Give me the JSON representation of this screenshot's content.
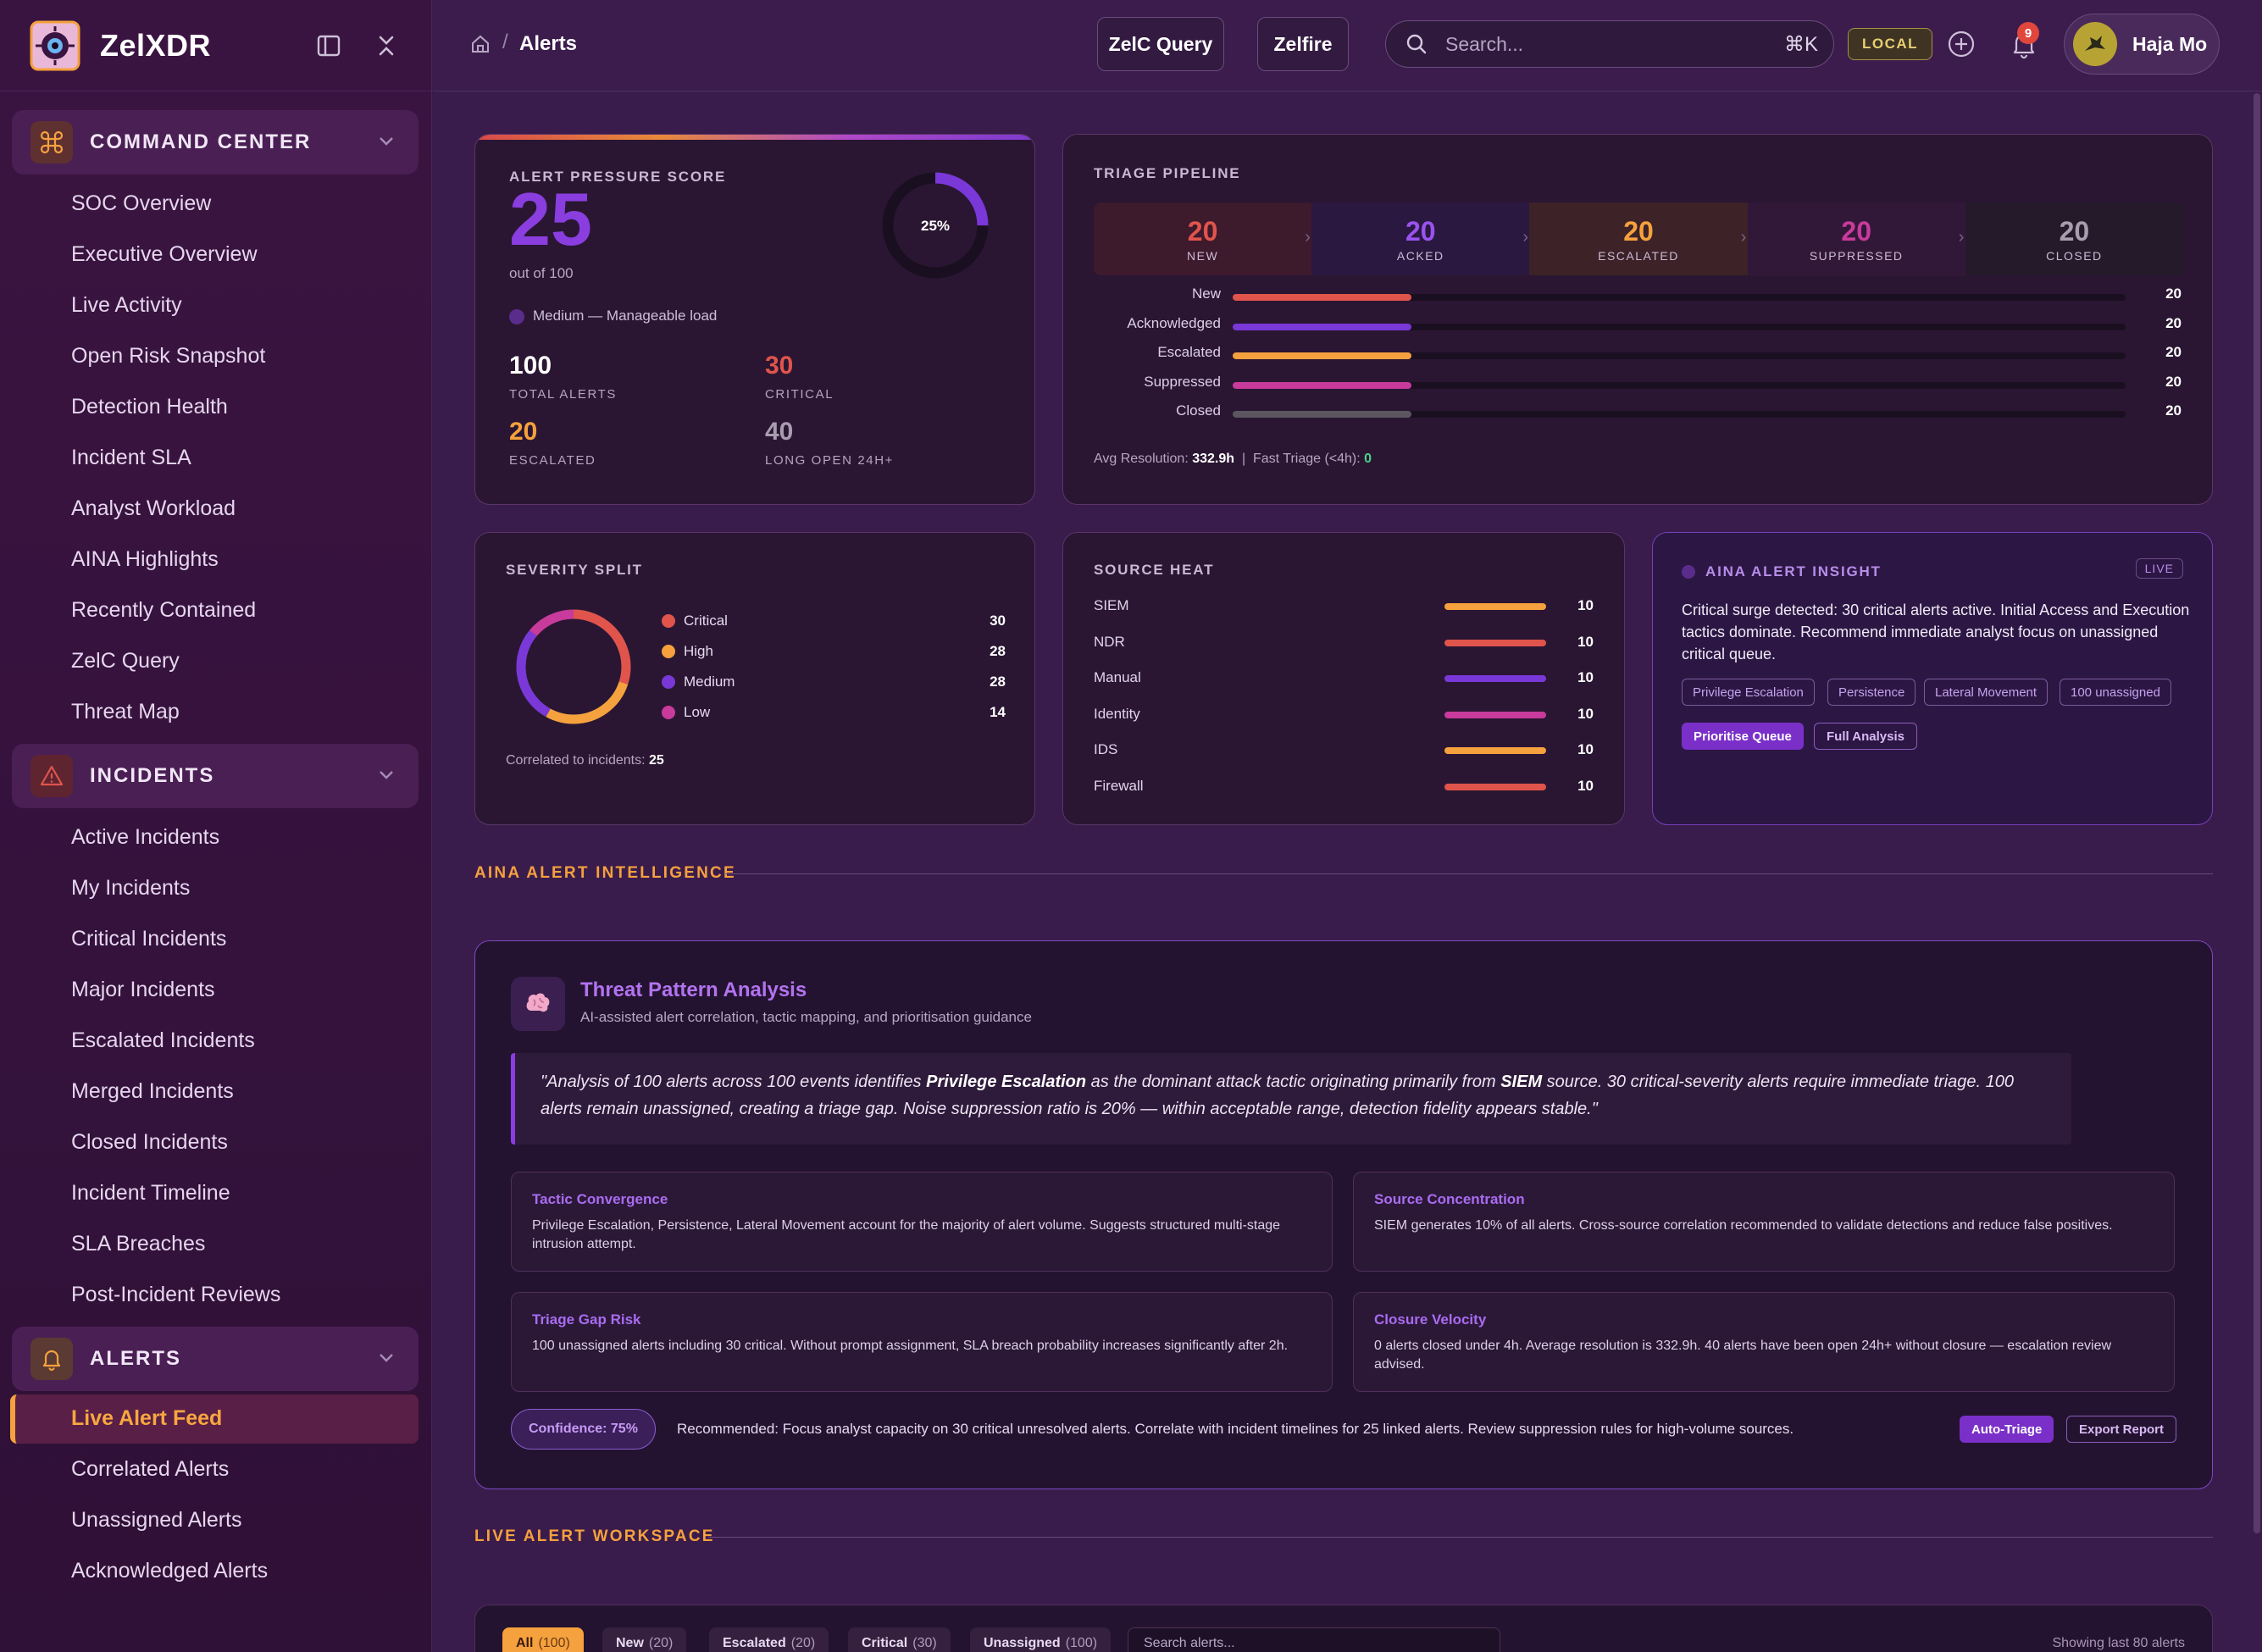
{
  "app": {
    "name": "ZelXDR"
  },
  "sidebar": {
    "sections": [
      {
        "title": "COMMAND CENTER",
        "items": [
          "SOC Overview",
          "Executive Overview",
          "Live Activity",
          "Open Risk Snapshot",
          "Detection Health",
          "Incident SLA",
          "Analyst Workload",
          "AINA Highlights",
          "Recently Contained",
          "ZelC Query",
          "Threat Map"
        ]
      },
      {
        "title": "INCIDENTS",
        "items": [
          "Active Incidents",
          "My Incidents",
          "Critical Incidents",
          "Major Incidents",
          "Escalated Incidents",
          "Merged Incidents",
          "Closed Incidents",
          "Incident Timeline",
          "SLA Breaches",
          "Post-Incident Reviews"
        ]
      },
      {
        "title": "ALERTS",
        "items": [
          "Live Alert Feed",
          "Correlated Alerts",
          "Unassigned Alerts",
          "Acknowledged Alerts"
        ],
        "active": "Live Alert Feed"
      }
    ]
  },
  "topbar": {
    "breadcrumb": "Alerts",
    "buttons": [
      "ZelC Query",
      "Zelfire"
    ],
    "search_placeholder": "Search...",
    "search_shortcut": "⌘K",
    "env_badge": "LOCAL",
    "notification_count": "9",
    "user": "Haja Mo"
  },
  "pressure": {
    "label": "ALERT PRESSURE SCORE",
    "score": "25",
    "out_of": "out of 100",
    "gauge_percent": 25,
    "gauge_text": "25%",
    "level": "Medium — Manageable load",
    "stats": [
      {
        "value": "100",
        "label": "TOTAL ALERTS",
        "color": "#ffffff"
      },
      {
        "value": "30",
        "label": "CRITICAL",
        "color": "#e0544c"
      },
      {
        "value": "20",
        "label": "ESCALATED",
        "color": "#f5a13d"
      },
      {
        "value": "40",
        "label": "LONG OPEN 24H+",
        "color": "#a99cb0"
      }
    ]
  },
  "triage": {
    "label": "TRIAGE PIPELINE",
    "stages": [
      {
        "value": "20",
        "label": "NEW",
        "color": "#e0544c",
        "bg": "#3d1a2c"
      },
      {
        "value": "20",
        "label": "ACKED",
        "color": "#9a52f0",
        "bg": "#2a1840"
      },
      {
        "value": "20",
        "label": "ESCALATED",
        "color": "#f5a13d",
        "bg": "#3d2228"
      },
      {
        "value": "20",
        "label": "SUPPRESSED",
        "color": "#c83a9c",
        "bg": "#321838"
      },
      {
        "value": "20",
        "label": "CLOSED",
        "color": "#a99cb0",
        "bg": "#241a2a"
      }
    ],
    "bars": [
      {
        "label": "New",
        "value": 20,
        "color": "#e0544c"
      },
      {
        "label": "Acknowledged",
        "value": 20,
        "color": "#7a38d8"
      },
      {
        "label": "Escalated",
        "value": 20,
        "color": "#f5a13d"
      },
      {
        "label": "Suppressed",
        "value": 20,
        "color": "#c83a9c"
      },
      {
        "label": "Closed",
        "value": 20,
        "color": "#5c5660"
      }
    ],
    "avg_label": "Avg Resolution:",
    "avg_value": "332.9h",
    "fast_label": "Fast Triage (<4h):",
    "fast_value": "0"
  },
  "severity": {
    "label": "SEVERITY SPLIT",
    "items": [
      {
        "name": "Critical",
        "value": 30,
        "color": "#e0544c"
      },
      {
        "name": "High",
        "value": 28,
        "color": "#f5a13d"
      },
      {
        "name": "Medium",
        "value": 28,
        "color": "#7a38d8"
      },
      {
        "name": "Low",
        "value": 14,
        "color": "#c83a9c"
      }
    ],
    "correlated_label": "Correlated to incidents:",
    "correlated_value": "25"
  },
  "source_heat": {
    "label": "SOURCE HEAT",
    "items": [
      {
        "name": "SIEM",
        "value": "10",
        "color": "#f5a13d"
      },
      {
        "name": "NDR",
        "value": "10",
        "color": "#e0544c"
      },
      {
        "name": "Manual",
        "value": "10",
        "color": "#7a38d8"
      },
      {
        "name": "Identity",
        "value": "10",
        "color": "#c83a9c"
      },
      {
        "name": "IDS",
        "value": "10",
        "color": "#f5a13d"
      },
      {
        "name": "Firewall",
        "value": "10",
        "color": "#e0544c"
      }
    ]
  },
  "insight": {
    "title": "AINA ALERT INSIGHT",
    "live": "LIVE",
    "body": "Critical surge detected: 30 critical alerts active. Initial Access and Execution tactics dominate. Recommend immediate analyst focus on unassigned critical queue.",
    "tags": [
      "Privilege Escalation",
      "Persistence",
      "Lateral Movement",
      "100 unassigned"
    ],
    "primary_button": "Prioritise Queue",
    "secondary_button": "Full Analysis"
  },
  "intelligence": {
    "section_title": "AINA ALERT INTELLIGENCE",
    "title": "Threat Pattern Analysis",
    "subtitle": "AI-assisted alert correlation, tactic mapping, and prioritisation guidance",
    "quote_1": "\"Analysis of 100 alerts across 100 events identifies ",
    "quote_b1": "Privilege Escalation",
    "quote_2": " as the dominant attack tactic originating primarily from ",
    "quote_b2": "SIEM",
    "quote_3": " source. 30 critical-severity alerts require immediate triage. 100 alerts remain unassigned, creating a triage gap. Noise suppression ratio is 20% — within acceptable range, detection fidelity appears stable.\"",
    "boxes": [
      {
        "title": "Tactic Convergence",
        "body": "Privilege Escalation, Persistence, Lateral Movement account for the majority of alert volume. Suggests structured multi-stage intrusion attempt."
      },
      {
        "title": "Source Concentration",
        "body": "SIEM generates 10% of all alerts. Cross-source correlation recommended to validate detections and reduce false positives."
      },
      {
        "title": "Triage Gap Risk",
        "body": "100 unassigned alerts including 30 critical. Without prompt assignment, SLA breach probability increases significantly after 2h."
      },
      {
        "title": "Closure Velocity",
        "body": "0 alerts closed under 4h. Average resolution is 332.9h. 40 alerts have been open 24h+ without closure — escalation review advised."
      }
    ],
    "confidence": "Confidence: 75%",
    "recommendation": "Recommended: Focus analyst capacity on 30 critical unresolved alerts. Correlate with incident timelines for 25 linked alerts. Review suppression rules for high-volume sources.",
    "auto_triage": "Auto-Triage",
    "export": "Export Report"
  },
  "workspace": {
    "section_title": "LIVE ALERT WORKSPACE",
    "filters": [
      {
        "label": "All",
        "count": "(100)"
      },
      {
        "label": "New",
        "count": "(20)"
      },
      {
        "label": "Escalated",
        "count": "(20)"
      },
      {
        "label": "Critical",
        "count": "(30)"
      },
      {
        "label": "Unassigned",
        "count": "(100)"
      }
    ],
    "search_placeholder": "Search alerts...",
    "showing": "Showing last 80 alerts"
  }
}
